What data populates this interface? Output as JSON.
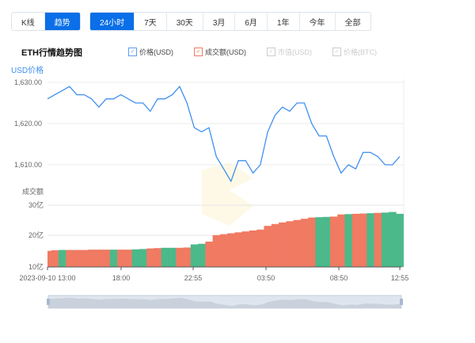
{
  "view_tabs": [
    {
      "label": "K线",
      "active": false
    },
    {
      "label": "趋势",
      "active": true
    }
  ],
  "range_tabs": [
    {
      "label": "24小时",
      "active": true
    },
    {
      "label": "7天"
    },
    {
      "label": "30天"
    },
    {
      "label": "3月"
    },
    {
      "label": "6月"
    },
    {
      "label": "1年"
    },
    {
      "label": "今年"
    },
    {
      "label": "全部"
    }
  ],
  "chart_title": "ETH行情趋势图",
  "legend": [
    {
      "label": "价格(USD)",
      "checked": true,
      "color": "#5b9cf0"
    },
    {
      "label": "成交额(USD)",
      "checked": true,
      "color": "#f07a62"
    },
    {
      "label": "市值(USD)",
      "checked": false,
      "color": "#cccccc"
    },
    {
      "label": "价格(BTC)",
      "checked": false,
      "color": "#cccccc"
    }
  ],
  "chart_data": [
    {
      "type": "line",
      "ylabel": "USD价格",
      "yticks": [
        "1,630.00",
        "1,620.00",
        "1,610.00"
      ],
      "ylim": [
        1610,
        1630
      ],
      "color": "#3f8ff0",
      "x": [
        "13:00",
        "13:30",
        "14:00",
        "14:30",
        "15:00",
        "15:30",
        "16:00",
        "16:30",
        "17:00",
        "17:30",
        "18:00",
        "18:30",
        "19:00",
        "19:30",
        "20:00",
        "20:30",
        "21:00",
        "21:30",
        "22:00",
        "22:30",
        "23:00",
        "23:30",
        "00:00",
        "00:30",
        "01:00",
        "01:30",
        "02:00",
        "02:30",
        "03:00",
        "03:30",
        "04:00",
        "04:30",
        "05:00",
        "05:30",
        "06:00",
        "06:30",
        "07:00",
        "07:30",
        "08:00",
        "08:30",
        "09:00",
        "09:30",
        "10:00",
        "10:30",
        "11:00",
        "11:30",
        "12:00",
        "12:30",
        "12:55"
      ],
      "values": [
        1626,
        1627,
        1628,
        1629,
        1627,
        1627,
        1626,
        1624,
        1626,
        1626,
        1627,
        1626,
        1625,
        1625,
        1623,
        1626,
        1626,
        1627,
        1629,
        1625,
        1619,
        1618,
        1619,
        1612,
        1609,
        1606,
        1611,
        1611,
        1608,
        1610,
        1618,
        1622,
        1624,
        1623,
        1625,
        1625,
        1620,
        1617,
        1617,
        1612,
        1608,
        1610,
        1609,
        1613,
        1613,
        1612,
        1610,
        1610,
        1612
      ]
    },
    {
      "type": "bar",
      "ylabel": "成交额",
      "yticks": [
        "30亿",
        "20亿",
        "10亿"
      ],
      "ylim": [
        10,
        30
      ],
      "unit": "亿",
      "values": [
        15.2,
        15.4,
        15.5,
        15.5,
        15.5,
        15.5,
        15.6,
        15.6,
        15.6,
        15.6,
        15.6,
        15.6,
        15.7,
        15.8,
        16,
        16.1,
        16.2,
        16.2,
        16.2,
        16.3,
        17.3,
        17.5,
        18.2,
        20.3,
        20.6,
        20.9,
        21.2,
        21.5,
        21.8,
        22.1,
        23.3,
        23.9,
        24.4,
        24.8,
        25.2,
        25.6,
        26,
        26.1,
        26.2,
        26.3,
        27,
        27.1,
        27.2,
        27.3,
        27.4,
        27.5,
        27.6,
        27.8,
        27.2
      ],
      "up_color": "#f07a62",
      "down_color": "#4bb98a",
      "down_indices": [
        2,
        9,
        12,
        13,
        16,
        17,
        20,
        21,
        37,
        38,
        41,
        44,
        46,
        47,
        48
      ]
    }
  ],
  "xticks": [
    "2023-09-10 13:00",
    "18:00",
    "22:55",
    "03:50",
    "08:50",
    "12:55"
  ]
}
